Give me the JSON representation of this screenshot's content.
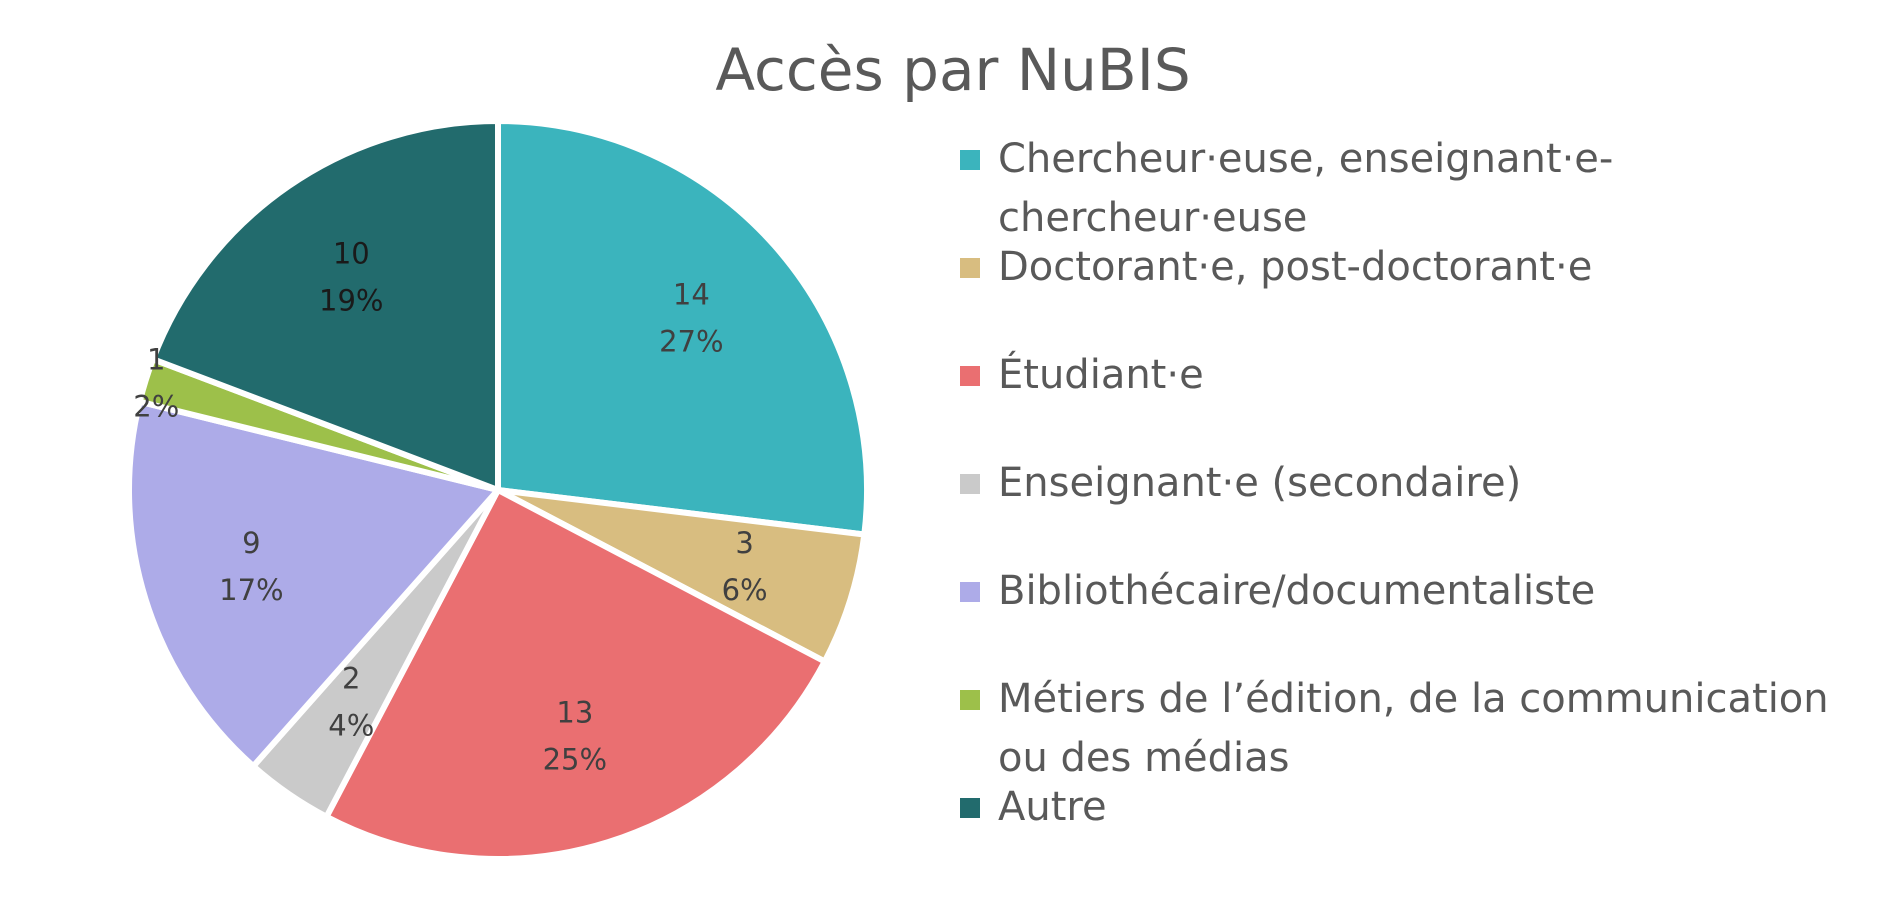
{
  "chart_data": {
    "type": "pie",
    "title": "Accès par NuBIS",
    "slices": [
      {
        "label": "Chercheur·euse, enseignant·e-chercheur·euse",
        "value": 14,
        "percent_label": "27%",
        "color": "#3bb4bd"
      },
      {
        "label": "Doctorant·e, post-doctorant·e",
        "value": 3,
        "percent_label": "6%",
        "color": "#d8bd80"
      },
      {
        "label": "Étudiant·e",
        "value": 13,
        "percent_label": "25%",
        "color": "#ea6f71"
      },
      {
        "label": "Enseignant·e (secondaire)",
        "value": 2,
        "percent_label": "4%",
        "color": "#cacaca"
      },
      {
        "label": "Bibliothécaire/documentaliste",
        "value": 9,
        "percent_label": "17%",
        "color": "#adabe8"
      },
      {
        "label": "Métiers de l’édition, de la communication ou des médias",
        "value": 1,
        "percent_label": "2%",
        "color": "#9dc04a"
      },
      {
        "label": "Autre",
        "value": 10,
        "percent_label": "19%",
        "color": "#226b6d"
      }
    ],
    "legend_position": "right"
  }
}
